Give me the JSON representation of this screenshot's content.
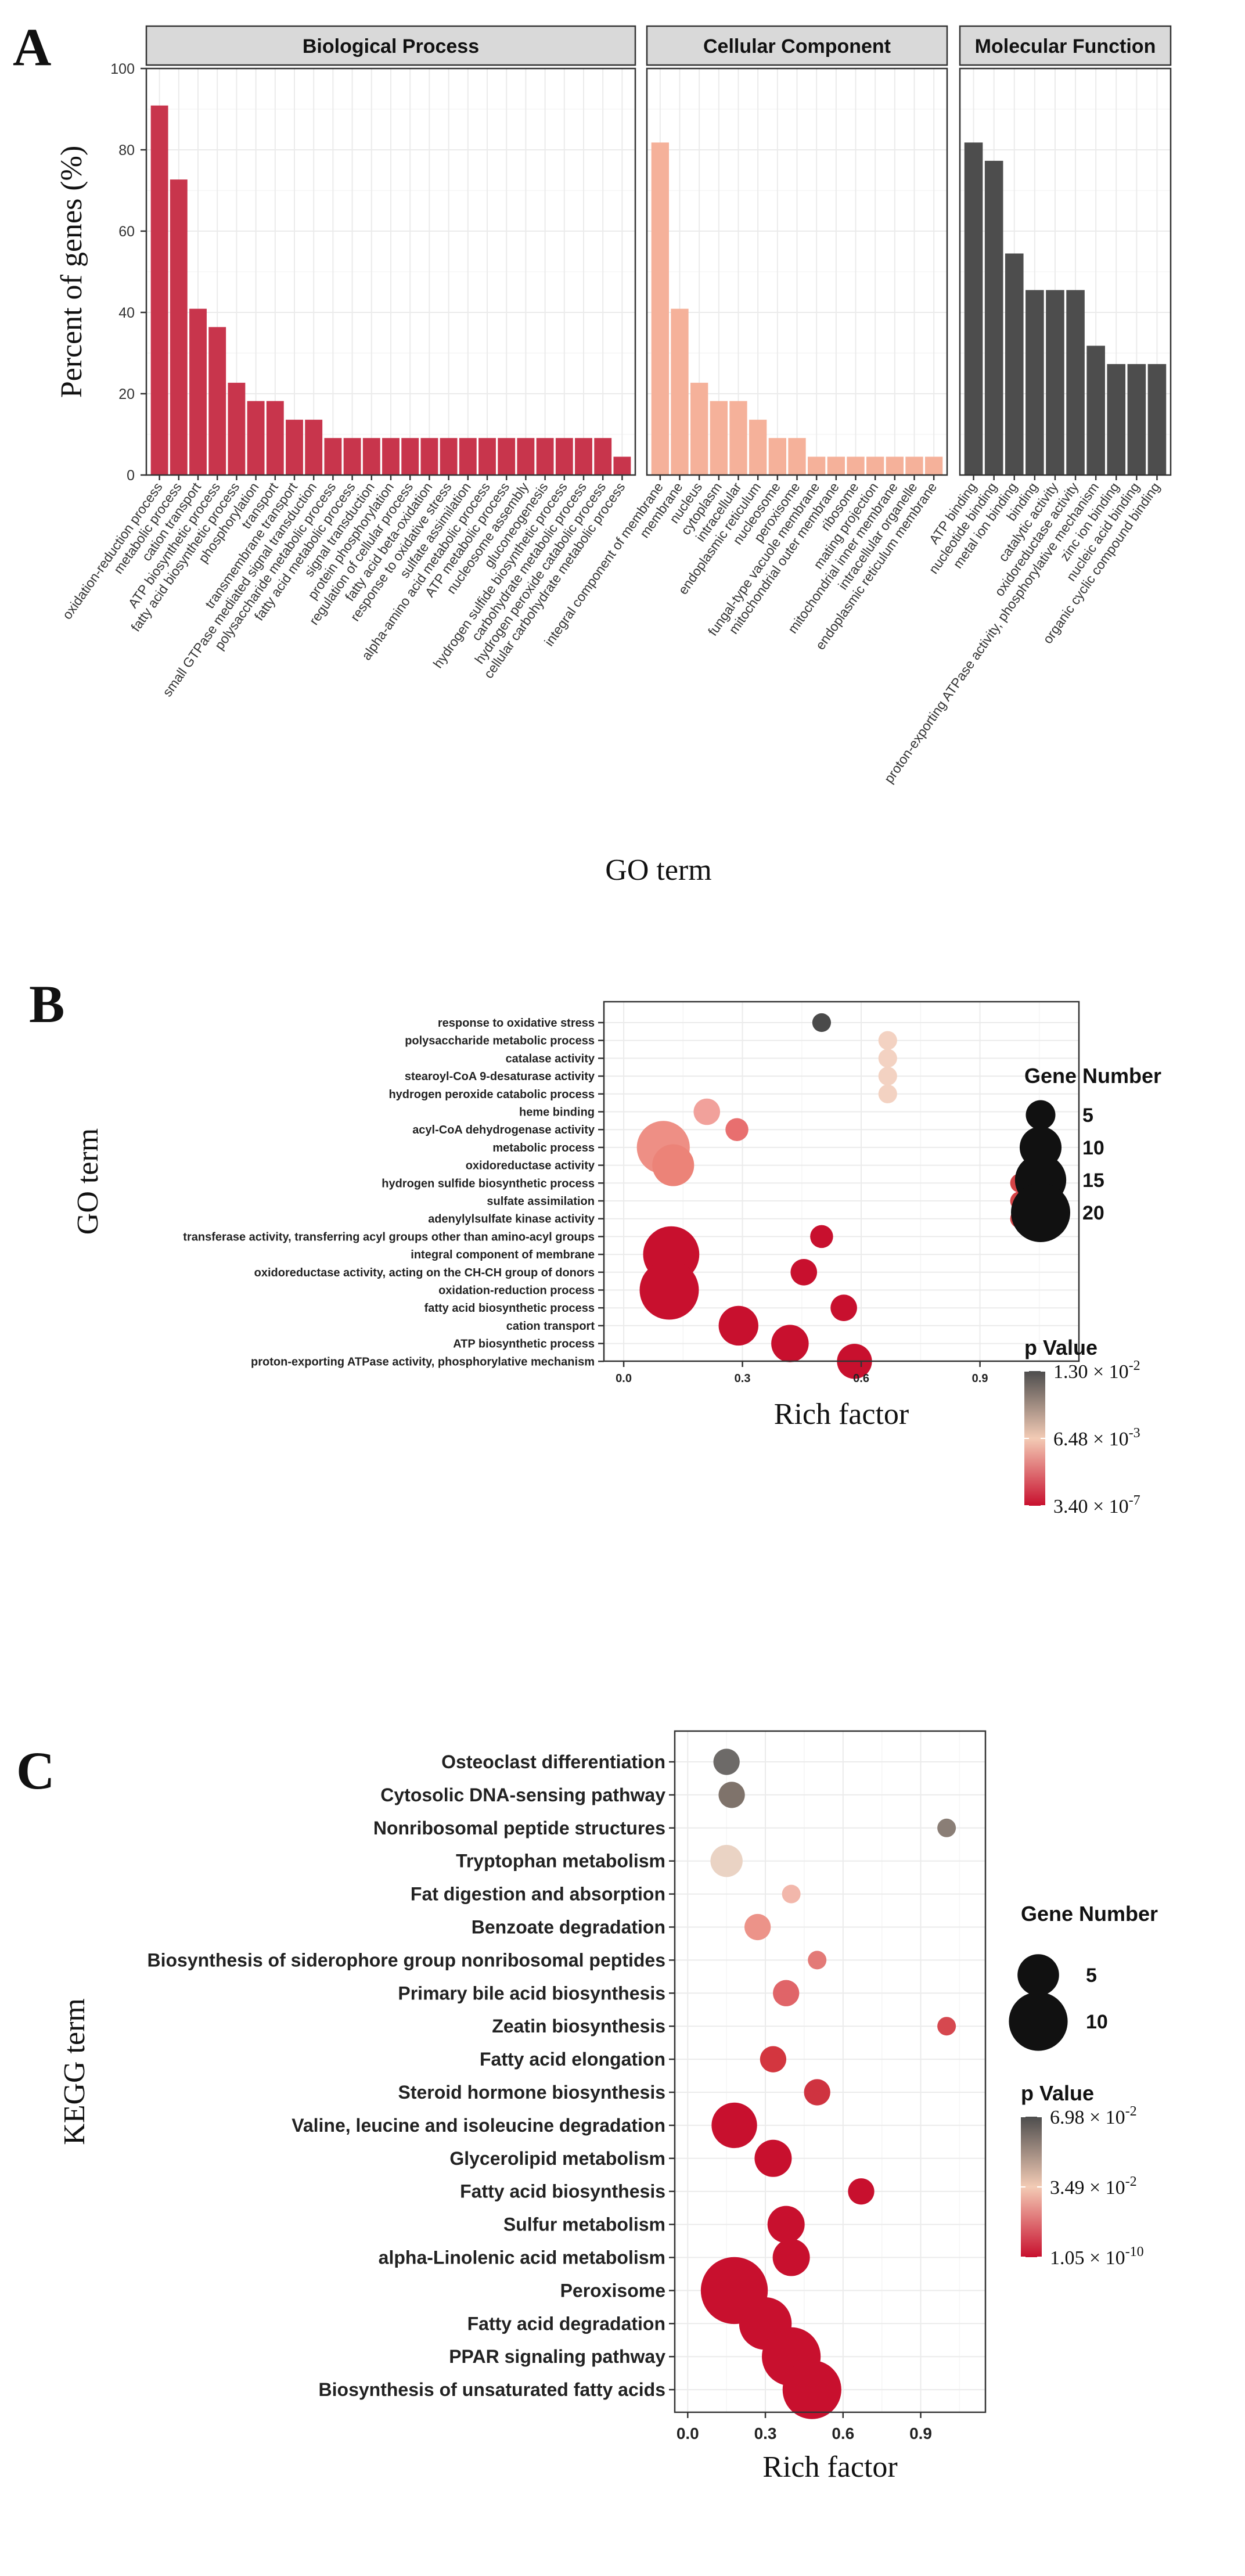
{
  "chart_data": [
    {
      "panel": "A",
      "type": "bar",
      "ylabel": "Percent of genes (%)",
      "xlabel": "GO term",
      "ylim": [
        0,
        100
      ],
      "yticks": [
        0,
        20,
        40,
        60,
        80,
        100
      ],
      "grid": true,
      "facets": [
        {
          "name": "Biological Process",
          "color": "#c8354c",
          "categories": [
            "oxidation-reduction process",
            "metabolic process",
            "cation transport",
            "ATP biosynthetic process",
            "fatty acid biosynthetic process",
            "phosphorylation",
            "transport",
            "transmembrane transport",
            "small GTPase mediated signal transduction",
            "polysaccharide metabolic process",
            "fatty acid metabolic process",
            "signal transduction",
            "protein phosphorylation",
            "regulation of cellular process",
            "fatty acid beta-oxidation",
            "response to oxidative stress",
            "sulfate assimilation",
            "alpha-amino acid metabolic process",
            "ATP metabolic process",
            "nucleosome assembly",
            "gluconeogenesis",
            "hydrogen sulfide biosynthetic process",
            "carbohydrate metabolic process",
            "hydrogen peroxide catabolic process",
            "cellular carbohydrate metabolic process"
          ],
          "values": [
            90.9,
            72.7,
            40.9,
            36.4,
            22.7,
            18.2,
            18.2,
            13.6,
            13.6,
            9.1,
            9.1,
            9.1,
            9.1,
            9.1,
            9.1,
            9.1,
            9.1,
            9.1,
            9.1,
            9.1,
            9.1,
            9.1,
            9.1,
            9.1,
            4.5
          ]
        },
        {
          "name": "Cellular Component",
          "color": "#f5b19a",
          "categories": [
            "integral component of membrane",
            "membrane",
            "nucleus",
            "cytoplasm",
            "intracellular",
            "endoplasmic reticulum",
            "nucleosome",
            "peroxisome",
            "fungal-type vacuole membrane",
            "mitochondrial outer membrane",
            "ribosome",
            "mating projection",
            "mitochondrial inner membrane",
            "intracellular organelle",
            "endoplasmic reticulum membrane"
          ],
          "values": [
            81.8,
            40.9,
            22.7,
            18.2,
            18.2,
            13.6,
            9.1,
            9.1,
            4.5,
            4.5,
            4.5,
            4.5,
            4.5,
            4.5,
            4.5
          ]
        },
        {
          "name": "Molecular Function",
          "color": "#4d4d4d",
          "categories": [
            "ATP binding",
            "nucleotide binding",
            "metal ion binding",
            "binding",
            "catalytic activity",
            "oxidoreductase activity",
            "proton-exporting ATPase activity, phosphorylative mechanism",
            "zinc ion binding",
            "nucleic acid binding",
            "organic cyclic compound binding"
          ],
          "values": [
            81.8,
            77.3,
            54.5,
            45.5,
            45.5,
            45.5,
            31.8,
            27.3,
            27.3,
            27.3
          ]
        }
      ]
    },
    {
      "panel": "B",
      "type": "scatter",
      "xlabel": "Rich factor",
      "ylabel": "GO term",
      "xlim": [
        -0.05,
        1.15
      ],
      "xticks": [
        "0.0",
        "0.3",
        "0.6",
        "0.9"
      ],
      "grid": true,
      "size_legend": {
        "title": "Gene Number",
        "items": [
          "5",
          "10",
          "15",
          "20"
        ]
      },
      "color_legend": {
        "title": "p Value",
        "high": "1.30 × 10",
        "high_exp": "-2",
        "mid": "6.48 × 10",
        "mid_exp": "-3",
        "low": "3.40 × 10",
        "low_exp": "-7",
        "colors": [
          "#4d4d4d",
          "#f3cbb5",
          "#c8102e"
        ]
      },
      "points": [
        {
          "term": "response to oxidative stress",
          "rich": 0.5,
          "genes": 2,
          "color": "#4a4a4a"
        },
        {
          "term": "polysaccharide metabolic process",
          "rich": 0.667,
          "genes": 2,
          "color": "#f3d2c2"
        },
        {
          "term": "catalase activity",
          "rich": 0.667,
          "genes": 2,
          "color": "#f3d2c2"
        },
        {
          "term": "stearoyl-CoA 9-desaturase activity",
          "rich": 0.667,
          "genes": 2,
          "color": "#f3d2c2"
        },
        {
          "term": "hydrogen peroxide catabolic process",
          "rich": 0.667,
          "genes": 2,
          "color": "#f3d2c2"
        },
        {
          "term": "heme binding",
          "rich": 0.21,
          "genes": 4,
          "color": "#f1a19b"
        },
        {
          "term": "acyl-CoA dehydrogenase activity",
          "rich": 0.286,
          "genes": 3,
          "color": "#e86f6f"
        },
        {
          "term": "metabolic process",
          "rich": 0.1,
          "genes": 16,
          "color": "#ee8f85"
        },
        {
          "term": "oxidoreductase activity",
          "rich": 0.125,
          "genes": 10,
          "color": "#ec8378"
        },
        {
          "term": "hydrogen sulfide biosynthetic process",
          "rich": 1.0,
          "genes": 2,
          "color": "#d54447"
        },
        {
          "term": "sulfate assimilation",
          "rich": 1.0,
          "genes": 2,
          "color": "#d54447"
        },
        {
          "term": "adenylylsulfate kinase activity",
          "rich": 1.0,
          "genes": 2,
          "color": "#d54447"
        },
        {
          "term": "transferase activity, transferring acyl groups other than amino-acyl groups",
          "rich": 0.5,
          "genes": 3,
          "color": "#c8102e"
        },
        {
          "term": "integral component of membrane",
          "rich": 0.12,
          "genes": 18,
          "color": "#c8102e"
        },
        {
          "term": "oxidoreductase activity, acting on the CH-CH group of donors",
          "rich": 0.455,
          "genes": 4,
          "color": "#c8102e"
        },
        {
          "term": "oxidation-reduction process",
          "rich": 0.115,
          "genes": 20,
          "color": "#c8102e"
        },
        {
          "term": "fatty acid biosynthetic process",
          "rich": 0.556,
          "genes": 4,
          "color": "#c8102e"
        },
        {
          "term": "cation transport",
          "rich": 0.29,
          "genes": 9,
          "color": "#c8102e"
        },
        {
          "term": "ATP biosynthetic process",
          "rich": 0.42,
          "genes": 8,
          "color": "#c8102e"
        },
        {
          "term": "proton-exporting ATPase activity, phosphorylative mechanism",
          "rich": 0.583,
          "genes": 7,
          "color": "#c8102e"
        }
      ]
    },
    {
      "panel": "C",
      "type": "scatter",
      "xlabel": "Rich factor",
      "ylabel": "KEGG term",
      "xlim": [
        -0.05,
        1.15
      ],
      "xticks": [
        "0.0",
        "0.3",
        "0.6",
        "0.9"
      ],
      "grid": true,
      "size_legend": {
        "title": "Gene Number",
        "items": [
          "5",
          "10"
        ]
      },
      "color_legend": {
        "title": "p Value",
        "high": "6.98 × 10",
        "high_exp": "-2",
        "mid": "3.49 × 10",
        "mid_exp": "-2",
        "low": "1.05 × 10",
        "low_exp": "-10",
        "colors": [
          "#4d4d4d",
          "#f3cbb5",
          "#c8102e"
        ]
      },
      "points": [
        {
          "term": "Osteoclast differentiation",
          "rich": 0.15,
          "genes": 2,
          "color": "#6d6a68"
        },
        {
          "term": "Cytosolic DNA-sensing pathway",
          "rich": 0.17,
          "genes": 2,
          "color": "#7f736b"
        },
        {
          "term": "Nonribosomal peptide structures",
          "rich": 1.0,
          "genes": 1,
          "color": "#8a7e76"
        },
        {
          "term": "Tryptophan metabolism",
          "rich": 0.15,
          "genes": 3,
          "color": "#ead3c4"
        },
        {
          "term": "Fat digestion and absorption",
          "rich": 0.4,
          "genes": 1,
          "color": "#f2b7ab"
        },
        {
          "term": "Benzoate degradation",
          "rich": 0.27,
          "genes": 2,
          "color": "#ec9389"
        },
        {
          "term": "Biosynthesis of siderophore group nonribosomal peptides",
          "rich": 0.5,
          "genes": 1,
          "color": "#e37a77"
        },
        {
          "term": "Primary bile acid biosynthesis",
          "rich": 0.38,
          "genes": 2,
          "color": "#e06468"
        },
        {
          "term": "Zeatin biosynthesis",
          "rich": 1.0,
          "genes": 1,
          "color": "#d6484f"
        },
        {
          "term": "Fatty acid elongation",
          "rich": 0.33,
          "genes": 2,
          "color": "#d3363f"
        },
        {
          "term": "Steroid hormone biosynthesis",
          "rich": 0.5,
          "genes": 2,
          "color": "#cf3340"
        },
        {
          "term": "Valine, leucine and isoleucine degradation",
          "rich": 0.18,
          "genes": 6,
          "color": "#c8102e"
        },
        {
          "term": "Glycerolipid metabolism",
          "rich": 0.33,
          "genes": 4,
          "color": "#c8102e"
        },
        {
          "term": "Fatty acid biosynthesis",
          "rich": 0.67,
          "genes": 2,
          "color": "#c8102e"
        },
        {
          "term": "Sulfur metabolism",
          "rich": 0.38,
          "genes": 4,
          "color": "#c8102e"
        },
        {
          "term": "alpha-Linolenic acid metabolism",
          "rich": 0.4,
          "genes": 4,
          "color": "#c8102e"
        },
        {
          "term": "Peroxisome",
          "rich": 0.18,
          "genes": 13,
          "color": "#c8102e"
        },
        {
          "term": "Fatty acid degradation",
          "rich": 0.3,
          "genes": 8,
          "color": "#c8102e"
        },
        {
          "term": "PPAR signaling pathway",
          "rich": 0.4,
          "genes": 10,
          "color": "#c8102e"
        },
        {
          "term": "Biosynthesis of unsaturated fatty acids",
          "rich": 0.48,
          "genes": 10,
          "color": "#c8102e"
        }
      ]
    }
  ],
  "panels": {
    "a": "A",
    "b": "B",
    "c": "C"
  }
}
